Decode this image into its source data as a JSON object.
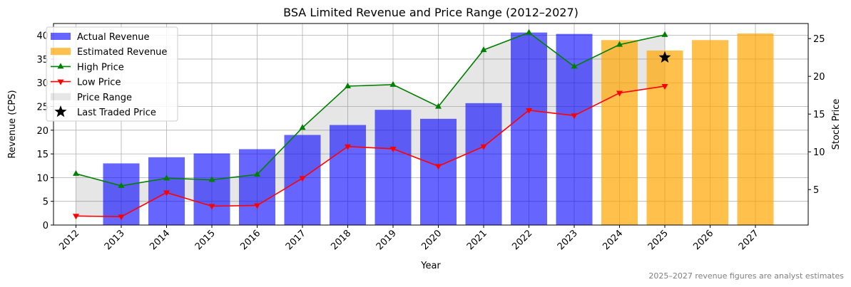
{
  "chart_data": {
    "type": "bar",
    "title": "BSA Limited Revenue and Price Range (2012–2027)",
    "xlabel": "Year",
    "ylabel": "Revenue (CPS)",
    "y2label": "Stock Price",
    "categories": [
      "2012",
      "2013",
      "2014",
      "2015",
      "2016",
      "2017",
      "2018",
      "2019",
      "2020",
      "2021",
      "2022",
      "2023",
      "2024",
      "2025",
      "2026",
      "2027"
    ],
    "ylim": [
      0,
      42.5
    ],
    "y2lim": [
      0.3,
      27.0
    ],
    "yticks": [
      0,
      5,
      10,
      15,
      20,
      25,
      30,
      35,
      40
    ],
    "y2ticks": [
      5,
      10,
      15,
      20,
      25
    ],
    "grid": true,
    "legend_position": "top-left",
    "series": [
      {
        "name": "Actual Revenue",
        "type": "bar",
        "axis": "left",
        "color": "#0000ff",
        "values": [
          null,
          13.0,
          14.3,
          15.1,
          16.0,
          19.0,
          21.1,
          24.3,
          22.4,
          25.7,
          40.6,
          40.3,
          null,
          null,
          null,
          null
        ]
      },
      {
        "name": "Estimated Revenue",
        "type": "bar",
        "axis": "left",
        "color": "#ffa500",
        "values": [
          null,
          null,
          null,
          null,
          null,
          null,
          null,
          null,
          null,
          null,
          null,
          null,
          39.0,
          36.8,
          39.0,
          40.4
        ]
      },
      {
        "name": "High Price",
        "type": "line",
        "axis": "right",
        "color": "#008000",
        "marker": "triangle-up",
        "values": [
          7.1,
          5.5,
          6.5,
          6.3,
          7.0,
          13.2,
          18.7,
          18.9,
          16.0,
          23.5,
          25.8,
          21.3,
          24.2,
          25.5,
          null,
          null
        ]
      },
      {
        "name": "Low Price",
        "type": "line",
        "axis": "right",
        "color": "#ff0000",
        "marker": "triangle-down",
        "values": [
          1.5,
          1.4,
          4.6,
          2.8,
          2.9,
          6.5,
          10.7,
          10.4,
          8.1,
          10.7,
          15.5,
          14.8,
          17.8,
          18.7,
          null,
          null
        ]
      },
      {
        "name": "Price Range",
        "type": "area",
        "axis": "right",
        "color": "#808080"
      },
      {
        "name": "Last Traded Price",
        "type": "scatter",
        "axis": "right",
        "color": "#000000",
        "marker": "star",
        "x": [
          "2025"
        ],
        "values": [
          22.5
        ]
      }
    ],
    "annotations": [
      "2025–2027 revenue figures are analyst estimates"
    ]
  }
}
